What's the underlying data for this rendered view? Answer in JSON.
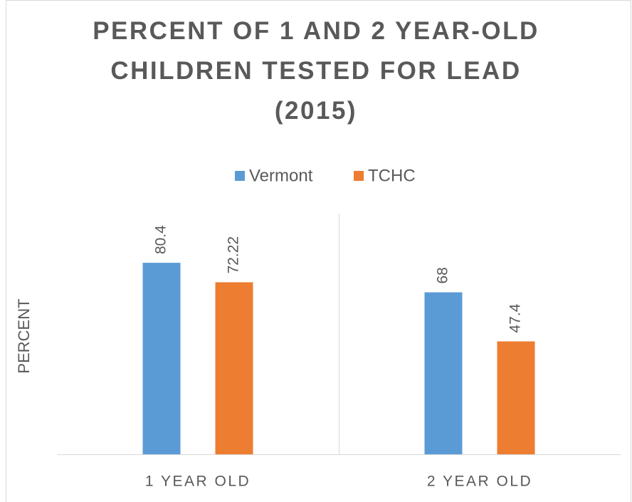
{
  "chart_data": {
    "type": "bar",
    "title": "PERCENT OF 1 AND 2 YEAR-OLD CHILDREN TESTED FOR LEAD (2015)",
    "y_label": "PERCENT",
    "categories": [
      "1 YEAR OLD",
      "2 YEAR OLD"
    ],
    "series": [
      {
        "name": "Vermont",
        "color": "#5b9bd5",
        "values": [
          80.4,
          68
        ]
      },
      {
        "name": "TCHC",
        "color": "#ed7d31",
        "values": [
          72.22,
          47.4
        ]
      }
    ],
    "ylim": [
      0,
      100
    ],
    "legend": "top"
  }
}
